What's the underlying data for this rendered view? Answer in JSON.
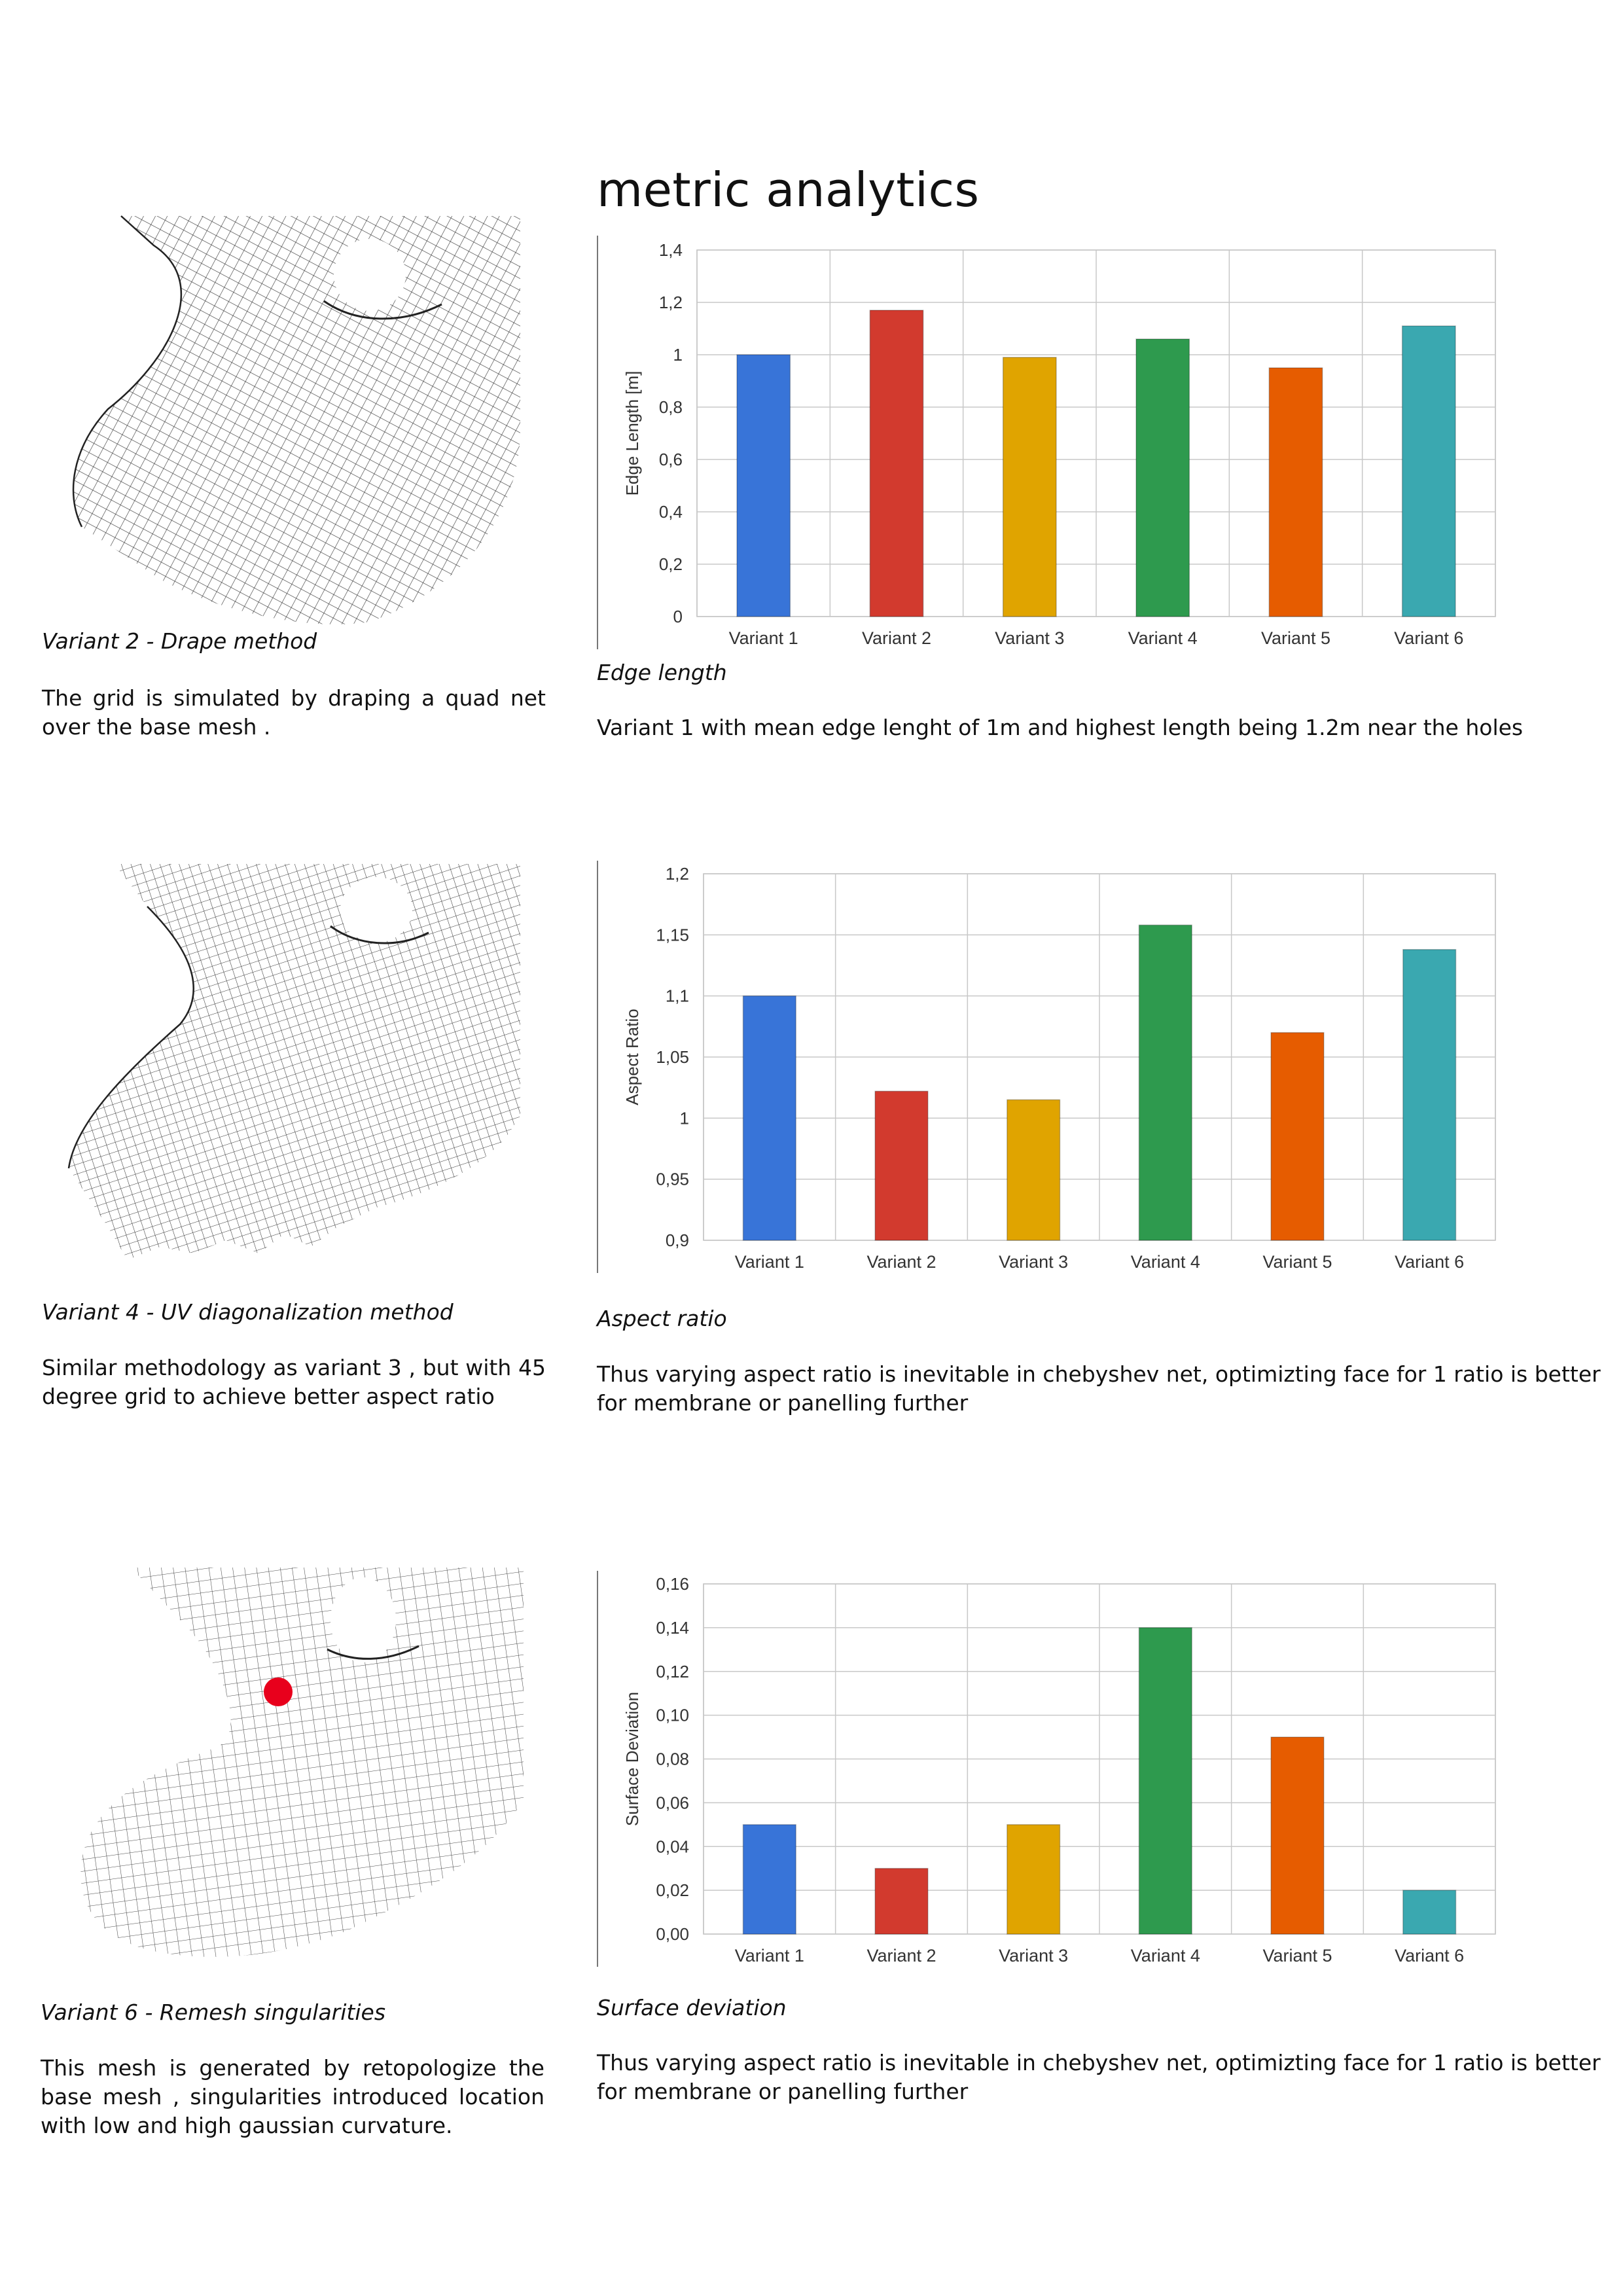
{
  "page_title": "metric analytics",
  "variants": [
    {
      "caption": "Variant 2 - Drape method",
      "description": "The grid is simulated by draping a quad net over the base mesh ."
    },
    {
      "caption": "Variant 4 - UV diagonalization method",
      "description": "Similar methodology as  variant 3 , but with 45 degree grid to achieve better aspect ratio"
    },
    {
      "caption": "Variant 6 - Remesh singularities",
      "description": "This mesh is generated by retopologize the base mesh , singularities introduced location with low and high gaussian curvature."
    }
  ],
  "metrics": [
    {
      "caption": "Edge length",
      "description": "Variant 1 with mean edge lenght of 1m and highest length being 1.2m  near the holes"
    },
    {
      "caption": "Aspect ratio",
      "description": "Thus varying aspect ratio is inevitable in chebyshev net, optimizting face for 1 ratio is better for membrane or panelling further"
    },
    {
      "caption": "Surface deviation",
      "description": "Thus varying aspect ratio is inevitable in chebyshev net, optimizting face for 1 ratio is better for membrane or panelling further"
    }
  ],
  "singularity_color": "#e8001c",
  "chart_data": [
    {
      "type": "bar",
      "categories": [
        "Variant 1",
        "Variant 2",
        "Variant 3",
        "Variant 4",
        "Variant 5",
        "Variant 6"
      ],
      "values": [
        1.0,
        1.17,
        0.99,
        1.06,
        0.95,
        1.11
      ],
      "ylabel": "Edge Length [m]",
      "ylim": [
        0,
        1.4
      ],
      "yticks": [
        "0",
        "0,2",
        "0,4",
        "0,6",
        "0,8",
        "1",
        "1,2",
        "1,4"
      ],
      "grid": true,
      "legend": "none",
      "colors": [
        "#3874d8",
        "#d23a2e",
        "#e0a400",
        "#2e9a4e",
        "#e65c00",
        "#3aa8b0"
      ]
    },
    {
      "type": "bar",
      "categories": [
        "Variant 1",
        "Variant 2",
        "Variant 3",
        "Variant 4",
        "Variant 5",
        "Variant 6"
      ],
      "values": [
        1.1,
        1.022,
        1.015,
        1.158,
        1.07,
        1.138
      ],
      "ylabel": "Aspect Ratio",
      "ylim": [
        0.9,
        1.2
      ],
      "yticks": [
        "0,9",
        "0,95",
        "1",
        "1,05",
        "1,1",
        "1,15",
        "1,2"
      ],
      "grid": true,
      "legend": "none",
      "colors": [
        "#3874d8",
        "#d23a2e",
        "#e0a400",
        "#2e9a4e",
        "#e65c00",
        "#3aa8b0"
      ]
    },
    {
      "type": "bar",
      "categories": [
        "Variant 1",
        "Variant 2",
        "Variant 3",
        "Variant 4",
        "Variant 5",
        "Variant 6"
      ],
      "values": [
        0.05,
        0.03,
        0.05,
        0.14,
        0.09,
        0.02
      ],
      "ylabel": "Surface Deviation",
      "ylim": [
        0,
        0.16
      ],
      "yticks": [
        "0,00",
        "0,02",
        "0,04",
        "0,06",
        "0,08",
        "0,10",
        "0,12",
        "0,14",
        "0,16"
      ],
      "grid": true,
      "legend": "none",
      "colors": [
        "#3874d8",
        "#d23a2e",
        "#e0a400",
        "#2e9a4e",
        "#e65c00",
        "#3aa8b0"
      ]
    }
  ]
}
